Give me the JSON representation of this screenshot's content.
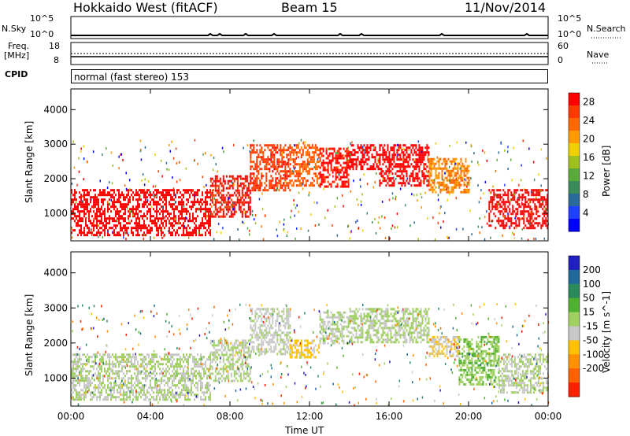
{
  "header": {
    "station": "Hokkaido West (fitACF)",
    "beam": "Beam 15",
    "date": "11/Nov/2014"
  },
  "strip_labels": {
    "nsky": "N.Sky",
    "freq_line1": "Freq.",
    "freq_line2": "[MHz]",
    "cpid": "CPID",
    "nsearch": "N.Search",
    "nave": "Nave",
    "nsky_ticks": [
      "10^5",
      "10^0"
    ],
    "freq_ticks": [
      "18",
      "8"
    ],
    "nsearch_ticks": [
      "10^5",
      "10^0"
    ],
    "nave_ticks": [
      "60",
      "0"
    ]
  },
  "cpid_text": "normal (fast stereo) 153",
  "colors": {
    "power_scale": [
      "#0000ff",
      "#2040ff",
      "#2a6a9a",
      "#3a8a5a",
      "#5aaa3a",
      "#a0c020",
      "#f0d000",
      "#ff9a00",
      "#ff6a00",
      "#ff3a00",
      "#ff0000"
    ],
    "velocity_scale": [
      "#2020c0",
      "#206a9a",
      "#2a8a5a",
      "#50b030",
      "#a0d060",
      "#c8c8c8",
      "#ffc000",
      "#ff9000",
      "#ff6000",
      "#ff2000"
    ],
    "ground_scatter": "#c0c0c0"
  },
  "chart_data": [
    {
      "type": "heatmap",
      "title": "Power",
      "xlabel": "Time UT",
      "ylabel": "Slant Range [km]",
      "x_ticks": [
        "00:00",
        "04:00",
        "08:00",
        "12:00",
        "16:00",
        "20:00",
        "00:00"
      ],
      "y_ticks": [
        "1000",
        "2000",
        "3000",
        "4000"
      ],
      "xlim": [
        0,
        24
      ],
      "ylim": [
        200,
        4600
      ],
      "colorbar": {
        "label": "Power [dB]",
        "ticks": [
          "4",
          "8",
          "12",
          "16",
          "20",
          "24",
          "28"
        ],
        "range": [
          0,
          30
        ]
      },
      "regions": [
        {
          "t0": 0,
          "t1": 7,
          "r0": 400,
          "r1": 1700,
          "value": 30
        },
        {
          "t0": 7,
          "t1": 9,
          "r0": 900,
          "r1": 2100,
          "value": 28
        },
        {
          "t0": 9,
          "t1": 11,
          "r0": 1700,
          "r1": 3000,
          "value": 26
        },
        {
          "t0": 11,
          "t1": 12.5,
          "r0": 1800,
          "r1": 3000,
          "value": 24
        },
        {
          "t0": 12.5,
          "t1": 14,
          "r0": 1800,
          "r1": 2900,
          "value": 28
        },
        {
          "t0": 14,
          "t1": 15.5,
          "r0": 2300,
          "r1": 3000,
          "value": 30
        },
        {
          "t0": 15.5,
          "t1": 18,
          "r0": 1800,
          "r1": 3000,
          "value": 30
        },
        {
          "t0": 18,
          "t1": 20,
          "r0": 1600,
          "r1": 2600,
          "value": 22
        },
        {
          "t0": 21,
          "t1": 24,
          "r0": 600,
          "r1": 1700,
          "value": 30
        }
      ]
    },
    {
      "type": "heatmap",
      "title": "Velocity",
      "xlabel": "Time UT",
      "ylabel": "Slant Range [km]",
      "x_ticks": [
        "00:00",
        "04:00",
        "08:00",
        "12:00",
        "16:00",
        "20:00",
        "00:00"
      ],
      "y_ticks": [
        "1000",
        "2000",
        "3000",
        "4000"
      ],
      "xlim": [
        0,
        24
      ],
      "ylim": [
        200,
        4600
      ],
      "colorbar": {
        "label": "Velocity [m s^-1]",
        "ticks": [
          "200",
          "100",
          "50",
          "15",
          "-15",
          "-50",
          "-100",
          "-200"
        ],
        "range": [
          -250,
          250
        ]
      },
      "regions": [
        {
          "t0": 0,
          "t1": 7,
          "r0": 400,
          "r1": 1700,
          "value": 0
        },
        {
          "t0": 7,
          "t1": 9,
          "r0": 900,
          "r1": 2100,
          "value": 0
        },
        {
          "t0": 9,
          "t1": 11,
          "r0": 1700,
          "r1": 3000,
          "value": -20
        },
        {
          "t0": 11,
          "t1": 12.5,
          "r0": 1600,
          "r1": 2100,
          "value": -60
        },
        {
          "t0": 12.5,
          "t1": 14,
          "r0": 2000,
          "r1": 2900,
          "value": 0
        },
        {
          "t0": 14,
          "t1": 18,
          "r0": 2000,
          "r1": 3000,
          "value": 5
        },
        {
          "t0": 18,
          "t1": 19.5,
          "r0": 1600,
          "r1": 2200,
          "value": -40
        },
        {
          "t0": 19.5,
          "t1": 21.5,
          "r0": 800,
          "r1": 2200,
          "value": 40
        },
        {
          "t0": 21.5,
          "t1": 24,
          "r0": 600,
          "r1": 1700,
          "value": 0
        }
      ]
    }
  ]
}
